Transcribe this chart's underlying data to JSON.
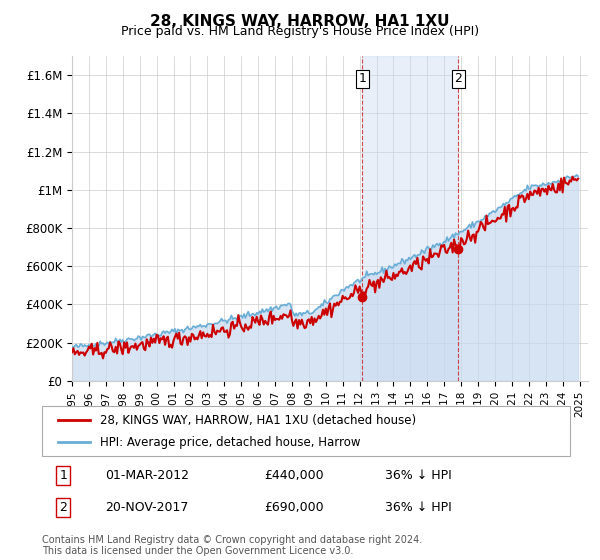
{
  "title": "28, KINGS WAY, HARROW, HA1 1XU",
  "subtitle": "Price paid vs. HM Land Registry's House Price Index (HPI)",
  "ylabel_ticks": [
    "£0",
    "£200K",
    "£400K",
    "£600K",
    "£800K",
    "£1M",
    "£1.2M",
    "£1.4M",
    "£1.6M"
  ],
  "ytick_values": [
    0,
    200000,
    400000,
    600000,
    800000,
    1000000,
    1200000,
    1400000,
    1600000
  ],
  "ylim": [
    0,
    1700000
  ],
  "hpi_color": "#6aaed6",
  "hpi_fill_color": "#c6d9f0",
  "price_color": "#cc0000",
  "sale1_date": "01-MAR-2012",
  "sale1_price": 440000,
  "sale1_label": "1",
  "sale2_date": "20-NOV-2017",
  "sale2_price": 690000,
  "sale2_label": "2",
  "legend_line1": "28, KINGS WAY, HARROW, HA1 1XU (detached house)",
  "legend_line2": "HPI: Average price, detached house, Harrow",
  "footnote": "Contains HM Land Registry data © Crown copyright and database right 2024.\nThis data is licensed under the Open Government Licence v3.0.",
  "table_row1": [
    "1",
    "01-MAR-2012",
    "£440,000",
    "36% ↓ HPI"
  ],
  "table_row2": [
    "2",
    "20-NOV-2017",
    "£690,000",
    "36% ↓ HPI"
  ],
  "bg_color": "#ffffff",
  "plot_bg_color": "#ffffff",
  "grid_color": "#cccccc"
}
